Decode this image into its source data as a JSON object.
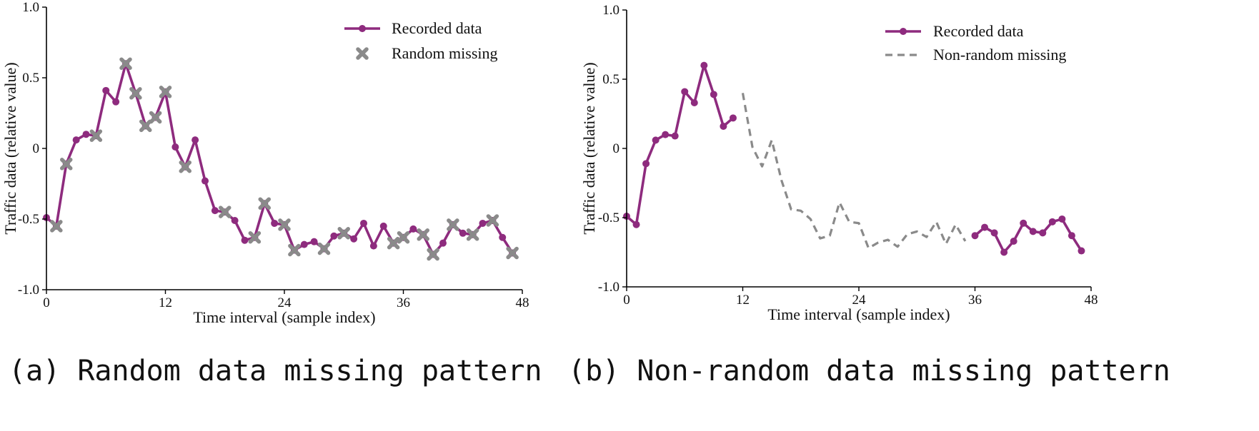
{
  "colors": {
    "recorded": "#8e2b7e",
    "missing": "#8a8a8a"
  },
  "chart_data": [
    {
      "type": "line",
      "panel": "a",
      "caption": "(a) Random data missing pattern",
      "xlabel": "Time interval (sample index)",
      "ylabel": "Traffic data (relative value)",
      "xlim": [
        0,
        48
      ],
      "ylim": [
        -1.0,
        1.0
      ],
      "xticks": [
        "0",
        "12",
        "24",
        "36",
        "48"
      ],
      "yticks": [
        "-1.0",
        "-0.5",
        "0",
        "0.5",
        "1.0"
      ],
      "legend_position": "top-right",
      "legend": [
        "Recorded data",
        "Random missing"
      ],
      "series": [
        {
          "name": "Recorded data",
          "style": "line-marker",
          "x": [
            0,
            1,
            2,
            3,
            4,
            5,
            6,
            7,
            8,
            9,
            10,
            11,
            12,
            13,
            14,
            15,
            16,
            17,
            18,
            19,
            20,
            21,
            22,
            23,
            24,
            25,
            26,
            27,
            28,
            29,
            30,
            31,
            32,
            33,
            34,
            35,
            36,
            37,
            38,
            39,
            40,
            41,
            42,
            43,
            44,
            45,
            46,
            47
          ],
          "values": [
            -0.49,
            -0.55,
            -0.11,
            0.06,
            0.1,
            0.09,
            0.41,
            0.33,
            0.6,
            0.39,
            0.16,
            0.22,
            0.4,
            0.01,
            -0.13,
            0.06,
            -0.23,
            -0.44,
            -0.45,
            -0.51,
            -0.65,
            -0.63,
            -0.39,
            -0.53,
            -0.54,
            -0.72,
            -0.68,
            -0.66,
            -0.71,
            -0.62,
            -0.6,
            -0.64,
            -0.53,
            -0.69,
            -0.55,
            -0.67,
            -0.63,
            -0.57,
            -0.61,
            -0.75,
            -0.67,
            -0.54,
            -0.6,
            -0.61,
            -0.53,
            -0.51,
            -0.63,
            -0.74
          ]
        },
        {
          "name": "Random missing",
          "style": "x-marker",
          "x": [
            1,
            2,
            5,
            8,
            9,
            10,
            11,
            12,
            14,
            18,
            21,
            22,
            24,
            25,
            28,
            30,
            35,
            36,
            38,
            39,
            41,
            43,
            45,
            47
          ],
          "values": [
            -0.55,
            -0.11,
            0.09,
            0.6,
            0.39,
            0.16,
            0.22,
            0.4,
            -0.13,
            -0.45,
            -0.63,
            -0.39,
            -0.54,
            -0.72,
            -0.71,
            -0.6,
            -0.67,
            -0.63,
            -0.61,
            -0.75,
            -0.54,
            -0.61,
            -0.51,
            -0.74
          ]
        }
      ]
    },
    {
      "type": "line",
      "panel": "b",
      "caption": "(b) Non-random data missing pattern",
      "xlabel": "Time interval (sample index)",
      "ylabel": "Traffic data (relative value)",
      "xlim": [
        0,
        48
      ],
      "ylim": [
        -1.0,
        1.0
      ],
      "xticks": [
        "0",
        "12",
        "24",
        "36",
        "48"
      ],
      "yticks": [
        "-1.0",
        "-0.5",
        "0",
        "0.5",
        "1.0"
      ],
      "legend_position": "top-right",
      "legend": [
        "Recorded data",
        "Non-random missing"
      ],
      "series": [
        {
          "name": "Recorded data",
          "style": "line-marker",
          "x": [
            0,
            1,
            2,
            3,
            4,
            5,
            6,
            7,
            8,
            9,
            10,
            11
          ],
          "values": [
            -0.49,
            -0.55,
            -0.11,
            0.06,
            0.1,
            0.09,
            0.41,
            0.33,
            0.6,
            0.39,
            0.16,
            0.22
          ]
        },
        {
          "name": "Non-random missing",
          "style": "dashed",
          "x": [
            12,
            13,
            14,
            15,
            16,
            17,
            18,
            19,
            20,
            21,
            22,
            23,
            24,
            25,
            26,
            27,
            28,
            29,
            30,
            31,
            32,
            33,
            34,
            35
          ],
          "values": [
            0.4,
            0.01,
            -0.13,
            0.06,
            -0.23,
            -0.44,
            -0.45,
            -0.51,
            -0.65,
            -0.63,
            -0.39,
            -0.53,
            -0.54,
            -0.72,
            -0.68,
            -0.66,
            -0.71,
            -0.62,
            -0.6,
            -0.64,
            -0.53,
            -0.69,
            -0.55,
            -0.67
          ]
        },
        {
          "name": "Recorded data",
          "style": "line-marker",
          "x": [
            36,
            37,
            38,
            39,
            40,
            41,
            42,
            43,
            44,
            45,
            46,
            47
          ],
          "values": [
            -0.63,
            -0.57,
            -0.61,
            -0.75,
            -0.67,
            -0.54,
            -0.6,
            -0.61,
            -0.53,
            -0.51,
            -0.63,
            -0.74
          ]
        }
      ]
    }
  ]
}
